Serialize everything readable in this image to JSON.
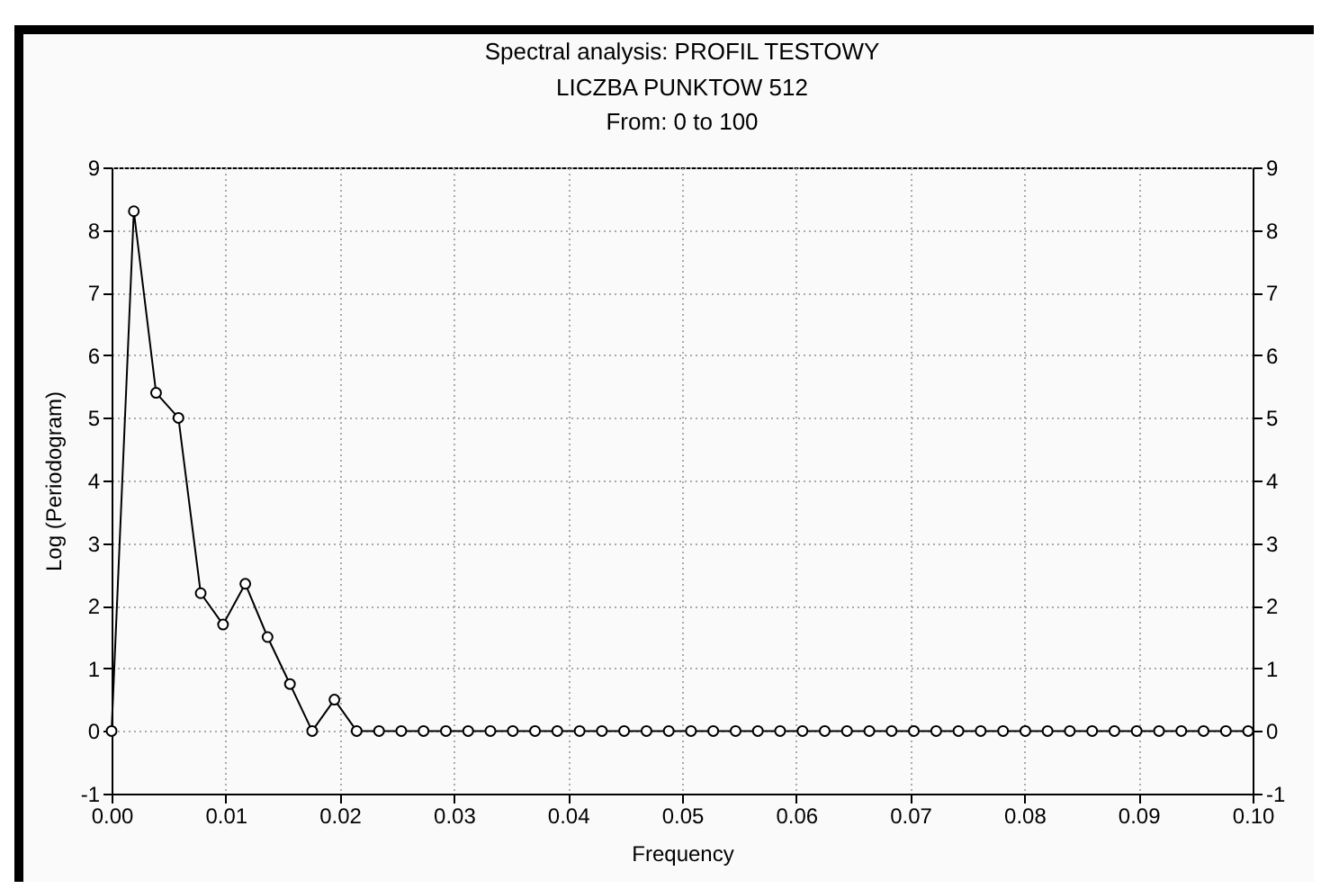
{
  "chart_data": {
    "type": "line",
    "title": "Spectral analysis: PROFIL TESTOWY",
    "subtitle": "LICZBA PUNKTOW 512\nFrom: 0 to 100",
    "xlabel": "Frequency",
    "ylabel": "Log (Periodogram)",
    "x": [
      0,
      0.00195,
      0.0039,
      0.00586,
      0.00781,
      0.00977,
      0.01172,
      0.01367,
      0.01563,
      0.01758,
      0.01953,
      0.02148,
      0.02344,
      0.02539,
      0.02734,
      0.0293,
      0.03125,
      0.0332,
      0.03516,
      0.03711,
      0.03906,
      0.04102,
      0.04297,
      0.04492,
      0.04688,
      0.04883,
      0.05078,
      0.05273,
      0.05469,
      0.05664,
      0.05859,
      0.06055,
      0.0625,
      0.06445,
      0.06641,
      0.06836,
      0.07031,
      0.07227,
      0.07422,
      0.07617,
      0.07813,
      0.08008,
      0.08203,
      0.08398,
      0.08594,
      0.08789,
      0.08984,
      0.0918,
      0.09375,
      0.0957,
      0.09766,
      0.09961
    ],
    "series": [
      {
        "color": "#000000",
        "values": [
          0,
          8.3,
          5.4,
          5.0,
          2.2,
          1.7,
          2.35,
          1.5,
          0.75,
          0,
          0.5,
          0,
          0,
          0,
          0,
          0,
          0,
          0,
          0,
          0,
          0,
          0,
          0,
          0,
          0,
          0,
          0,
          0,
          0,
          0,
          0,
          0,
          0,
          0,
          0,
          0,
          0,
          0,
          0,
          0,
          0,
          0,
          0,
          0,
          0,
          0,
          0,
          0,
          0,
          0,
          0,
          0
        ]
      }
    ],
    "xlim": [
      0,
      0.1
    ],
    "xticks": [
      {
        "value": 0,
        "label": "0.00"
      },
      {
        "value": 0.01,
        "label": "0.01"
      },
      {
        "value": 0.02,
        "label": "0.02"
      },
      {
        "value": 0.03,
        "label": "0.03"
      },
      {
        "value": 0.04,
        "label": "0.04"
      },
      {
        "value": 0.05,
        "label": "0.05"
      },
      {
        "value": 0.06,
        "label": "0.06"
      },
      {
        "value": 0.07,
        "label": "0.07"
      },
      {
        "value": 0.08,
        "label": "0.08"
      },
      {
        "value": 0.09,
        "label": "0.09"
      },
      {
        "value": 0.1,
        "label": "0.10"
      }
    ],
    "ylim": [
      -1,
      9
    ],
    "yticks": [
      -1,
      0,
      1,
      2,
      3,
      4,
      5,
      6,
      7,
      8,
      9
    ],
    "y2lim": [
      -1,
      9
    ],
    "y2ticks": [
      -1,
      0,
      1,
      2,
      3,
      4,
      5,
      6,
      7,
      8,
      9
    ],
    "grid": true,
    "marker": "circle",
    "line_style": "solid"
  }
}
